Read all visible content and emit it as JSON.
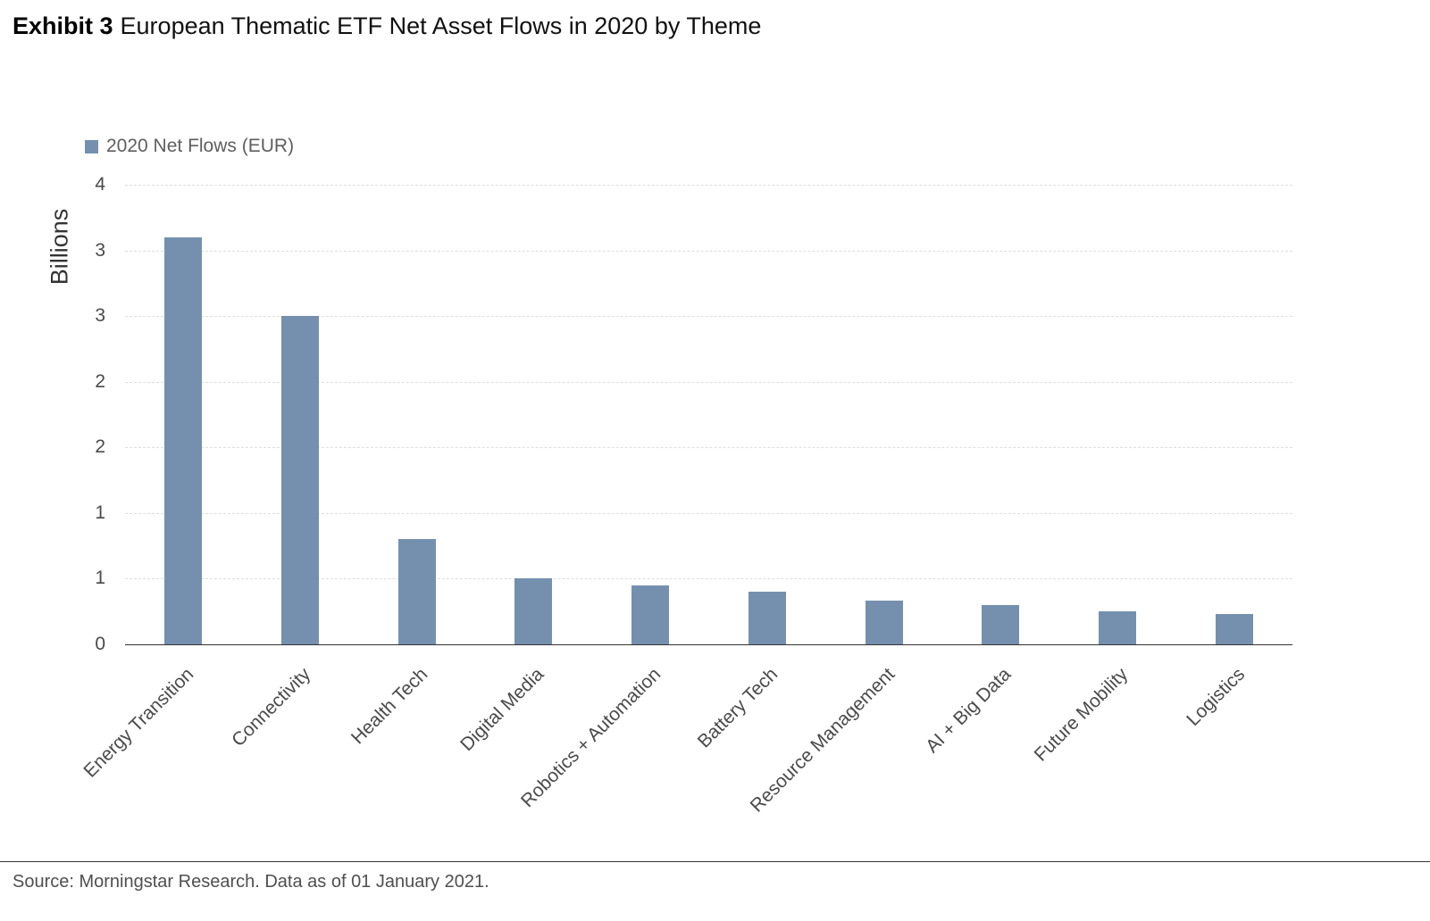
{
  "chart_data": {
    "type": "bar",
    "title_bold": "Exhibit 3",
    "title": "European Thematic ETF Net Asset Flows in 2020 by Theme",
    "legend": "2020 Net Flows (EUR)",
    "legend_position": "top-left",
    "ylabel": "Billions",
    "categories": [
      "Energy Transition",
      "Connectivity",
      "Health Tech",
      "Digital Media",
      "Robotics + Automation",
      "Battery Tech",
      "Resource Management",
      "AI + Big Data",
      "Future Mobility",
      "Logistics"
    ],
    "values": [
      3.1,
      2.5,
      0.8,
      0.5,
      0.45,
      0.4,
      0.33,
      0.3,
      0.25,
      0.23
    ],
    "ylim": [
      0,
      3.5
    ],
    "yticks": [
      {
        "value": 0,
        "label": "0"
      },
      {
        "value": 0.5,
        "label": "1"
      },
      {
        "value": 1,
        "label": "1"
      },
      {
        "value": 1.5,
        "label": "2"
      },
      {
        "value": 2,
        "label": "2"
      },
      {
        "value": 2.5,
        "label": "3"
      },
      {
        "value": 3,
        "label": "3"
      },
      {
        "value": 3.5,
        "label": "4"
      }
    ],
    "grid": "horizontal-dashed",
    "bar_color": "#7590AE",
    "source": "Source: Morningstar Research. Data as of 01 January 2021."
  }
}
